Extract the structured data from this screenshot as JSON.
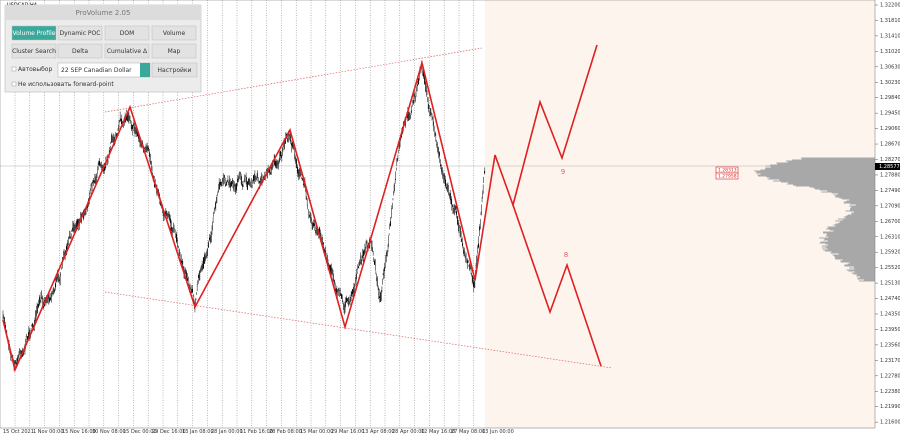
{
  "panel": {
    "title": "ProVolume 2.05",
    "buttons": [
      "Volume Profile",
      "Dynamic POC",
      "DOM",
      "Volume",
      "Cluster Search",
      "Delta",
      "Cumulative Δ",
      "Map"
    ],
    "auto_select": "Автовыбор",
    "instrument": "22 SEP Canadian Dollar",
    "settings": "Настройки",
    "forward_point": "Не использовать forward-point"
  },
  "chart": {
    "symbol": "USDCAD,H4",
    "price_labels": [
      "1.32200",
      "1.31810",
      "1.31410",
      "1.31020",
      "1.30630",
      "1.30230",
      "1.29840",
      "1.29450",
      "1.29060",
      "1.28670",
      "1.28270",
      "1.27880",
      "1.27490",
      "1.27090",
      "1.26700",
      "1.26310",
      "1.25920",
      "1.25520",
      "1.25130",
      "1.24740",
      "1.24350",
      "1.23950",
      "1.23560",
      "1.23170",
      "1.22780",
      "1.22380",
      "1.21990",
      "1.21600"
    ],
    "current_price": "1.28577",
    "level_tags": [
      "1.28313",
      "1.27958"
    ],
    "date_labels": [
      "15 Oct 2021",
      "1 Nov 00:00",
      "15 Nov 16:00",
      "30 Nov 08:00",
      "15 Dec 00:00",
      "29 Dec 16:00",
      "13 Jan 08:00",
      "28 Jan 00:00",
      "11 Feb 16:00",
      "28 Feb 08:00",
      "15 Mar 00:00",
      "29 Mar 16:00",
      "13 Apr 08:00",
      "28 Apr 00:00",
      "12 May 16:00",
      "27 May 08:00",
      "13 Jun 00:00"
    ],
    "wave_labels": [
      "9",
      "8"
    ]
  }
}
